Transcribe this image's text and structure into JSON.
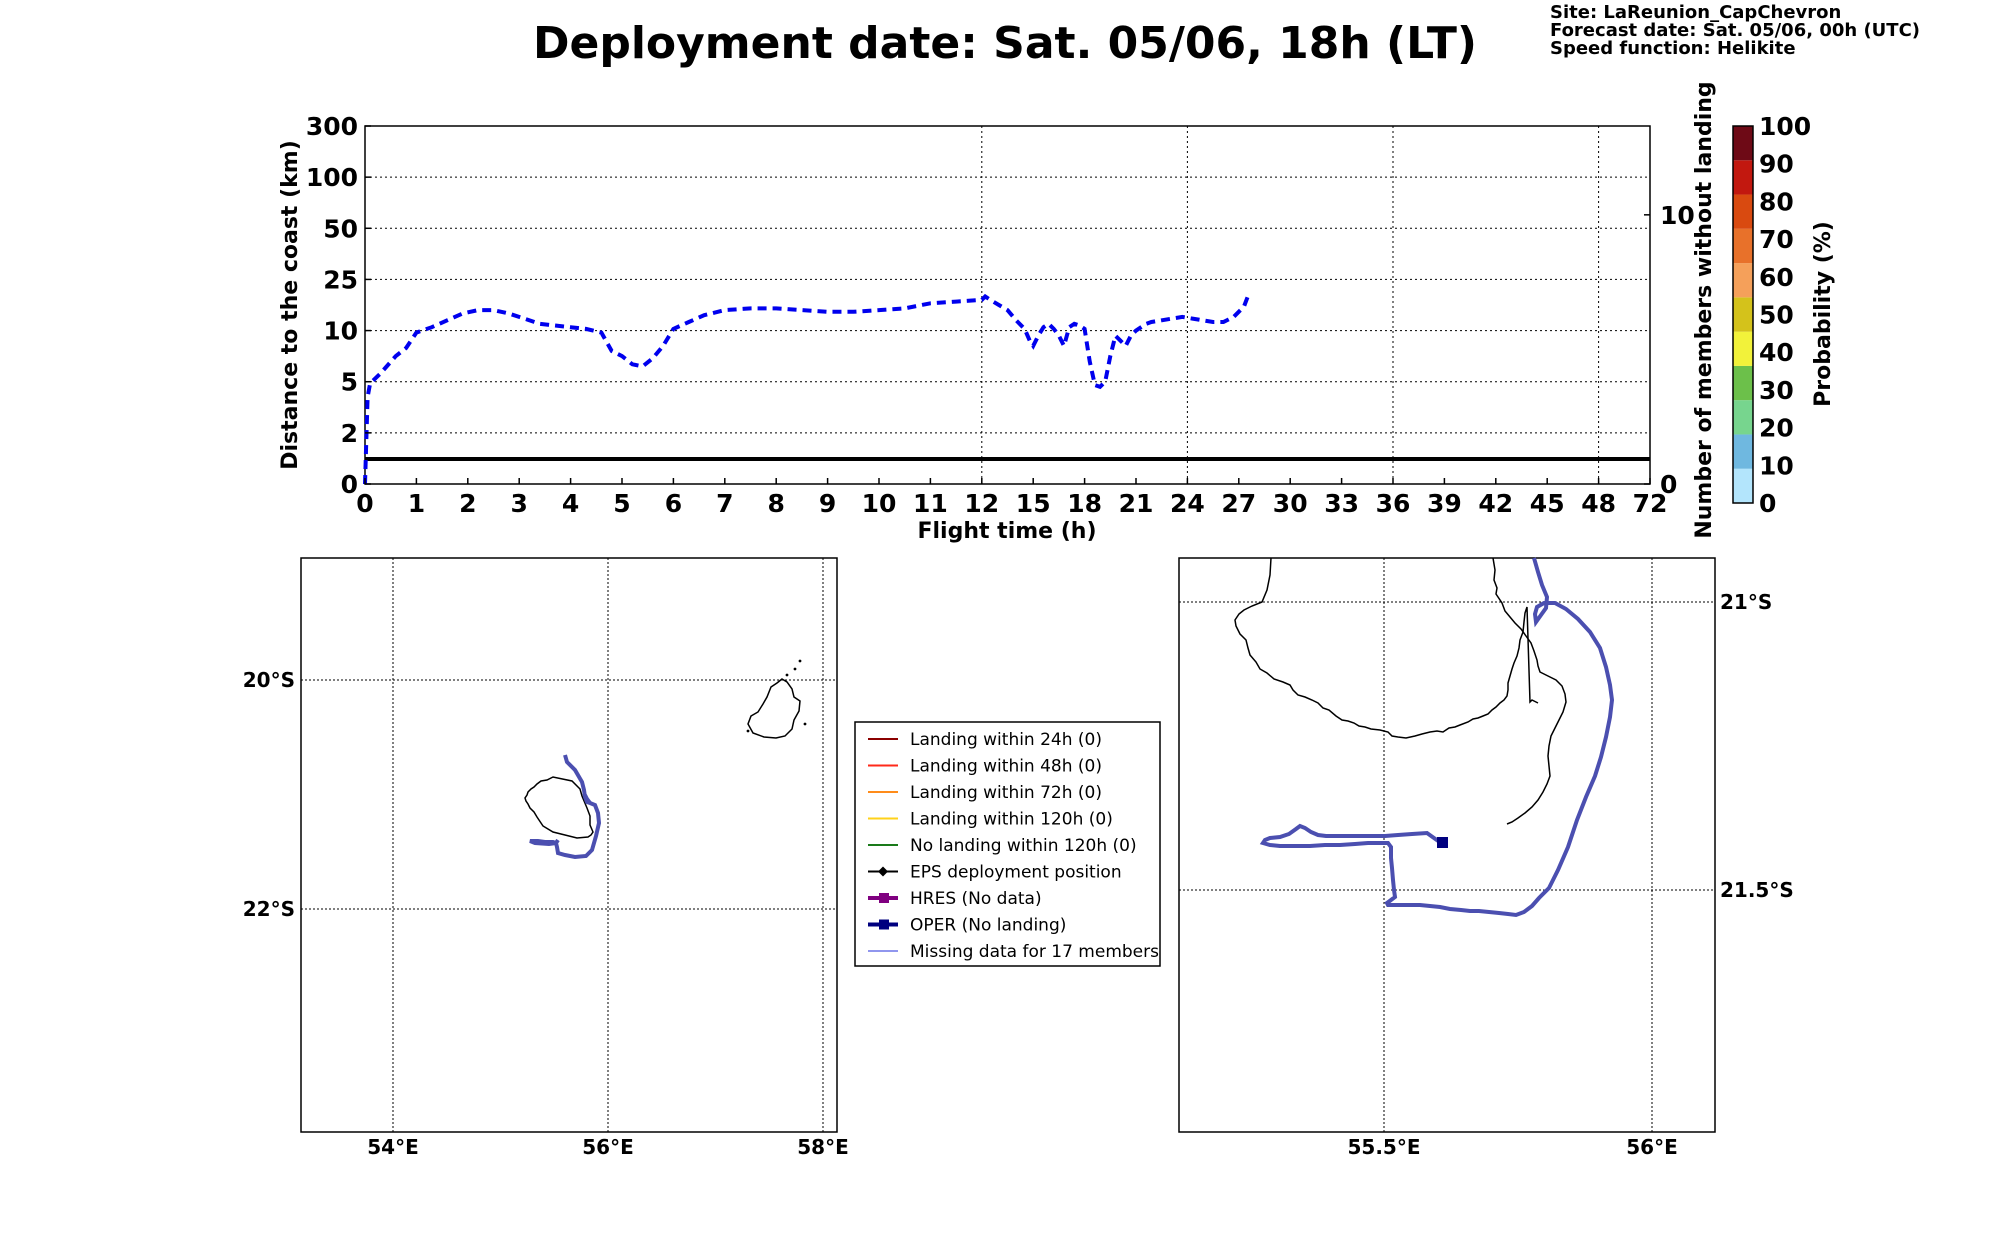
{
  "header": {
    "title": "Deployment date: Sat. 05/06, 18h (LT)",
    "site": "Site: LaReunion_CapChevron",
    "forecast": "Forecast date: Sat. 05/06, 00h (UTC)",
    "speed": "Speed function: Helikite"
  },
  "chart_data": [
    {
      "type": "line",
      "title": "Deployment date: Sat. 05/06, 18h (LT)",
      "xlabel": "Flight time (h)",
      "ylabel": "Distance to the coast (km)",
      "ylabel_right": "Number of members without landing",
      "x_ticks": [
        "0",
        "1",
        "2",
        "3",
        "4",
        "5",
        "6",
        "7",
        "8",
        "9",
        "10",
        "11",
        "12",
        "15",
        "18",
        "21",
        "24",
        "27",
        "30",
        "33",
        "36",
        "39",
        "42",
        "45",
        "48",
        "72"
      ],
      "y_ticks": [
        "0",
        "2",
        "5",
        "10",
        "25",
        "50",
        "100",
        "300"
      ],
      "y_ticks_right": [
        "0",
        "10"
      ],
      "xgrid": [
        "12",
        "24",
        "36",
        "48"
      ],
      "grid": true,
      "series": [
        {
          "name": "OPER",
          "color": "#0000ee",
          "style": "dashed",
          "x": [
            0,
            0.05,
            0.1,
            0.3,
            0.6,
            0.8,
            1,
            1.3,
            1.6,
            1.9,
            2.2,
            2.5,
            2.8,
            3.1,
            3.4,
            3.7,
            4,
            4.3,
            4.6,
            4.8,
            5,
            5.2,
            5.4,
            5.6,
            5.8,
            6,
            6.3,
            6.6,
            7,
            7.5,
            8,
            8.5,
            9,
            9.5,
            10,
            10.5,
            11,
            11.5,
            12,
            12.2,
            12.5,
            13,
            13.5,
            14,
            14.5,
            14.8,
            15,
            15.3,
            15.6,
            15.9,
            16.2,
            16.5,
            16.8,
            17.1,
            17.4,
            17.7,
            18,
            18.3,
            18.6,
            18.9,
            19.2,
            19.5,
            19.8,
            20.1,
            20.4,
            20.7,
            21,
            21.3,
            21.6,
            21.9,
            22.5,
            23.1,
            23.7,
            24.3,
            24.9,
            25.5,
            26.1,
            26.7,
            27.3,
            27.6
          ],
          "y": [
            0,
            4.1,
            4.9,
            5.8,
            7.5,
            8.3,
            9.8,
            11,
            13,
            15,
            16,
            16,
            15,
            13.5,
            12,
            11.5,
            11,
            10.5,
            9.8,
            8,
            7.5,
            6.7,
            6.5,
            7.3,
            8.5,
            10.5,
            12.5,
            14.5,
            16,
            16.5,
            16.5,
            16,
            15.5,
            15.5,
            16,
            16.5,
            18,
            18.5,
            19,
            20,
            19,
            17.5,
            16,
            13,
            10.5,
            9,
            8.5,
            9.5,
            11,
            12,
            10.5,
            9.5,
            8.5,
            11,
            12,
            11.5,
            10.5,
            7,
            4.8,
            4.7,
            5,
            7.5,
            9.5,
            9,
            8.5,
            9.5,
            10,
            11,
            12,
            12.5,
            13,
            13.5,
            14,
            13.5,
            13,
            12.5,
            12.5,
            14,
            17,
            21
          ]
        },
        {
          "name": "Number of members without landing",
          "color": "#000000",
          "style": "solid",
          "right_axis_value": 1
        }
      ]
    },
    {
      "type": "map",
      "title": "",
      "x_ticks": [
        "54°E",
        "56°E",
        "58°E"
      ],
      "y_ticks": [
        "20°S",
        "22°S"
      ],
      "grid": true
    },
    {
      "type": "map",
      "title": "",
      "x_ticks": [
        "55.5°E",
        "56°E"
      ],
      "y_ticks": [
        "21°S",
        "21.5°S"
      ],
      "grid": true
    }
  ],
  "colorbar": {
    "label": "Probability (%)",
    "ticks": [
      "0",
      "10",
      "20",
      "30",
      "40",
      "50",
      "60",
      "70",
      "80",
      "90",
      "100"
    ],
    "colors": [
      "#b3e5fc",
      "#6fb8e0",
      "#77d58e",
      "#6cc04a",
      "#f2f23a",
      "#d4c21b",
      "#f5a05a",
      "#e8712a",
      "#d94a10",
      "#c2180f",
      "#6e0a16"
    ]
  },
  "legend": [
    {
      "label": "Landing within 24h (0)",
      "color": "#8b0000",
      "marker": "none",
      "weight": 2
    },
    {
      "label": "Landing within 48h (0)",
      "color": "#ff2a1a",
      "marker": "none",
      "weight": 2
    },
    {
      "label": "Landing within 72h (0)",
      "color": "#ff8c1a",
      "marker": "none",
      "weight": 2
    },
    {
      "label": "Landing within 120h (0)",
      "color": "#ffd21a",
      "marker": "none",
      "weight": 2
    },
    {
      "label": "No landing within 120h (0)",
      "color": "#1a7a1a",
      "marker": "none",
      "weight": 2
    },
    {
      "label": "EPS deployment position",
      "color": "#000000",
      "marker": "diamond",
      "weight": 2
    },
    {
      "label": "HRES (No data)",
      "color": "#800080",
      "marker": "square",
      "weight": 4
    },
    {
      "label": "OPER (No landing)",
      "color": "#00007f",
      "marker": "square",
      "weight": 4
    },
    {
      "label": "Missing data for 17 members",
      "color": "#6b74e8",
      "marker": "none",
      "weight": 1.5
    }
  ],
  "colors": {
    "track": "#4b4fb0",
    "opermarker": "#00007f",
    "coast": "#000000"
  }
}
